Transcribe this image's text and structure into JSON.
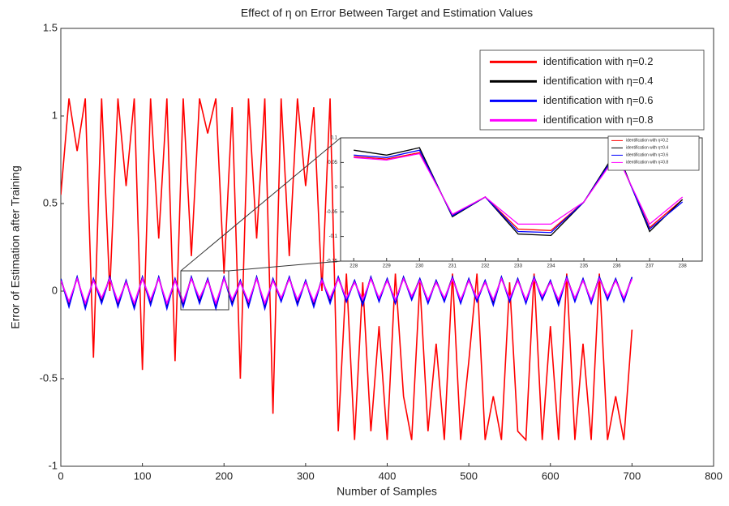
{
  "chart_data": [
    {
      "type": "line",
      "title": "Effect of η on Error Between Target and Estimation Values",
      "xlabel": "Number of Samples",
      "ylabel": "Error of Estimation after Training",
      "x": [
        0,
        10,
        20,
        30,
        40,
        50,
        60,
        70,
        80,
        90,
        100,
        110,
        120,
        130,
        140,
        150,
        160,
        170,
        180,
        190,
        200,
        210,
        220,
        230,
        240,
        250,
        260,
        270,
        280,
        290,
        300,
        310,
        320,
        330,
        340,
        350,
        360,
        370,
        380,
        390,
        400,
        410,
        420,
        430,
        440,
        450,
        460,
        470,
        480,
        490,
        500,
        510,
        520,
        530,
        540,
        550,
        560,
        570,
        580,
        590,
        600,
        610,
        620,
        630,
        640,
        650,
        660,
        670,
        680,
        690,
        700
      ],
      "xlim": [
        0,
        800
      ],
      "xticks": [
        0,
        100,
        200,
        300,
        400,
        500,
        600,
        700,
        800
      ],
      "ylim": [
        -1,
        1.5
      ],
      "yticks": [
        -1,
        -0.5,
        0,
        0.5,
        1,
        1.5
      ],
      "legend": "upper right",
      "series": [
        {
          "name": "identification with η=0.2",
          "color": "#ff0000",
          "values": [
            0.55,
            1.1,
            0.8,
            1.1,
            -0.38,
            1.1,
            0.0,
            1.1,
            0.6,
            1.1,
            -0.45,
            1.1,
            0.3,
            1.1,
            -0.4,
            1.1,
            0.2,
            1.1,
            0.9,
            1.1,
            0.1,
            1.05,
            -0.5,
            1.1,
            0.3,
            1.1,
            -0.7,
            1.1,
            0.2,
            1.1,
            0.6,
            1.05,
            0.0,
            1.1,
            -0.8,
            0.1,
            -0.85,
            0.05,
            -0.8,
            -0.2,
            -0.85,
            0.1,
            -0.6,
            -0.85,
            0.05,
            -0.8,
            -0.3,
            -0.85,
            0.1,
            -0.85,
            -0.4,
            0.1,
            -0.85,
            -0.6,
            -0.85,
            0.05,
            -0.8,
            -0.85,
            0.1,
            -0.85,
            -0.2,
            -0.85,
            0.1,
            -0.85,
            -0.3,
            -0.85,
            0.1,
            -0.85,
            -0.6,
            -0.85,
            -0.22
          ]
        },
        {
          "name": "identification with η=0.4",
          "color": "#000000",
          "values": [
            0.07,
            -0.08,
            0.08,
            -0.09,
            0.07,
            -0.06,
            0.08,
            -0.08,
            0.06,
            -0.09,
            0.08,
            -0.07,
            0.08,
            -0.09,
            0.07,
            -0.08,
            0.08,
            -0.06,
            0.07,
            -0.09,
            0.08,
            -0.07,
            0.06,
            -0.08,
            0.08,
            -0.09,
            0.07,
            -0.05,
            0.08,
            -0.07,
            0.06,
            -0.08,
            0.07,
            -0.06,
            0.08,
            -0.05,
            0.06,
            -0.07,
            0.08,
            -0.05,
            0.07,
            -0.06,
            0.08,
            -0.04,
            0.07,
            -0.06,
            0.06,
            -0.05,
            0.08,
            -0.06,
            0.07,
            -0.05,
            0.06,
            -0.07,
            0.08,
            -0.05,
            0.07,
            -0.06,
            0.08,
            -0.04,
            0.06,
            -0.07,
            0.08,
            -0.05,
            0.07,
            -0.06,
            0.08,
            -0.04,
            0.07,
            -0.05,
            0.08
          ]
        },
        {
          "name": "identification with η=0.6",
          "color": "#0000ff",
          "values": [
            0.07,
            -0.09,
            0.08,
            -0.1,
            0.07,
            -0.07,
            0.08,
            -0.09,
            0.06,
            -0.1,
            0.08,
            -0.08,
            0.08,
            -0.1,
            0.07,
            -0.09,
            0.08,
            -0.07,
            0.07,
            -0.1,
            0.08,
            -0.08,
            0.06,
            -0.09,
            0.08,
            -0.1,
            0.07,
            -0.06,
            0.08,
            -0.08,
            0.06,
            -0.09,
            0.07,
            -0.07,
            0.08,
            -0.06,
            0.06,
            -0.08,
            0.08,
            -0.06,
            0.07,
            -0.07,
            0.08,
            -0.05,
            0.07,
            -0.07,
            0.06,
            -0.06,
            0.08,
            -0.07,
            0.07,
            -0.06,
            0.06,
            -0.08,
            0.08,
            -0.06,
            0.07,
            -0.07,
            0.08,
            -0.05,
            0.06,
            -0.08,
            0.08,
            -0.06,
            0.07,
            -0.07,
            0.08,
            -0.05,
            0.07,
            -0.06,
            0.08
          ]
        },
        {
          "name": "identification with η=0.8",
          "color": "#ff00ff",
          "values": [
            0.06,
            -0.06,
            0.07,
            -0.07,
            0.06,
            -0.04,
            0.07,
            -0.06,
            0.05,
            -0.07,
            0.07,
            -0.05,
            0.07,
            -0.07,
            0.06,
            -0.06,
            0.07,
            -0.04,
            0.06,
            -0.07,
            0.07,
            -0.05,
            0.05,
            -0.06,
            0.07,
            -0.07,
            0.06,
            -0.04,
            0.07,
            -0.05,
            0.05,
            -0.06,
            0.06,
            -0.04,
            0.07,
            -0.04,
            0.05,
            -0.05,
            0.07,
            -0.04,
            0.06,
            -0.05,
            0.07,
            -0.03,
            0.06,
            -0.05,
            0.05,
            -0.04,
            0.07,
            -0.05,
            0.06,
            -0.04,
            0.05,
            -0.05,
            0.07,
            -0.04,
            0.06,
            -0.05,
            0.07,
            -0.03,
            0.05,
            -0.05,
            0.07,
            -0.04,
            0.06,
            -0.05,
            0.07,
            -0.03,
            0.06,
            -0.04,
            0.07
          ]
        }
      ]
    },
    {
      "type": "line",
      "x": [
        228,
        229,
        230,
        231,
        232,
        233,
        234,
        235,
        236,
        237,
        238
      ],
      "xlim": [
        227.6,
        238.6
      ],
      "xticks": [
        228,
        229,
        230,
        231,
        232,
        233,
        234,
        235,
        236,
        237,
        238
      ],
      "ylim": [
        -0.15,
        0.1
      ],
      "yticks": [
        -0.15,
        -0.1,
        -0.05,
        0,
        0.05,
        0.1
      ],
      "legend": "upper right",
      "series": [
        {
          "name": "identification with η=0.2",
          "color": "#ff0000",
          "values": [
            0.062,
            0.057,
            0.07,
            -0.056,
            -0.02,
            -0.085,
            -0.088,
            -0.03,
            0.068,
            -0.082,
            -0.025
          ]
        },
        {
          "name": "identification with η=0.4",
          "color": "#000000",
          "values": [
            0.075,
            0.065,
            0.08,
            -0.06,
            -0.02,
            -0.095,
            -0.098,
            -0.03,
            0.075,
            -0.09,
            -0.025
          ]
        },
        {
          "name": "identification with η=0.6",
          "color": "#0000ff",
          "values": [
            0.065,
            0.06,
            0.075,
            -0.058,
            -0.02,
            -0.09,
            -0.092,
            -0.03,
            0.07,
            -0.085,
            -0.03
          ]
        },
        {
          "name": "identification with η=0.8",
          "color": "#ff00ff",
          "values": [
            0.06,
            0.055,
            0.068,
            -0.055,
            -0.02,
            -0.075,
            -0.075,
            -0.03,
            0.065,
            -0.075,
            -0.02
          ]
        }
      ]
    }
  ]
}
